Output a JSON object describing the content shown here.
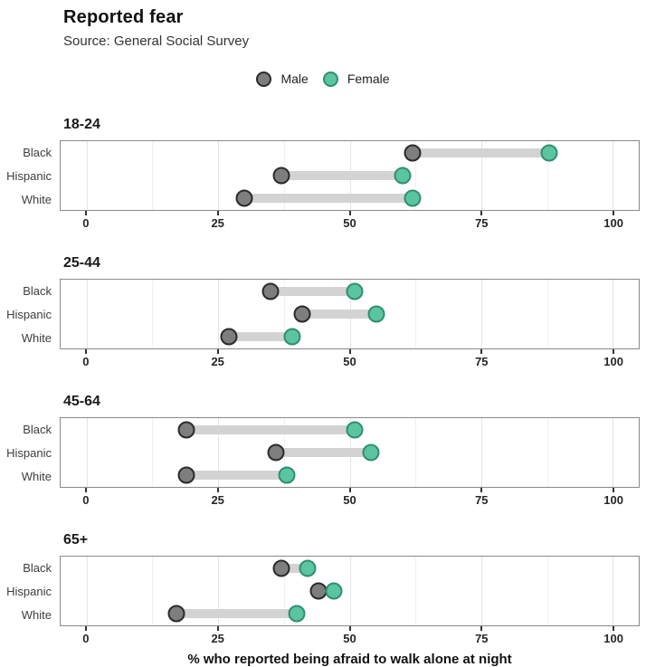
{
  "title": "Reported fear",
  "subtitle": "Source: General Social Survey",
  "colors": {
    "male_fill": "#7e7e7e",
    "male_stroke": "#2b2b2b",
    "female_fill": "#5bc4a1",
    "female_stroke": "#2f8f70",
    "connector": "#d3d3d3",
    "grid_major": "#e4e4e4",
    "grid_minor": "#f0f0f0",
    "panel_border": "#8a8a8a",
    "tick": "#333333"
  },
  "chart_data": {
    "type": "dumbbell",
    "title": "Reported fear",
    "subtitle": "Source: General Social Survey",
    "xlabel": "% who reported being afraid to walk alone at night",
    "xlim": [
      0,
      100
    ],
    "xticks": [
      0,
      25,
      50,
      75,
      100
    ],
    "minor_ticks": [
      12.5,
      37.5,
      62.5,
      87.5
    ],
    "grid": true,
    "legend": [
      "Male",
      "Female"
    ],
    "legend_position": "top-center",
    "series_colors": {
      "Male": "#7e7e7e",
      "Female": "#5bc4a1"
    },
    "categories": [
      "Black",
      "Hispanic",
      "White"
    ],
    "panels": [
      {
        "label": "18-24",
        "rows": [
          {
            "category": "Black",
            "male": 62,
            "female": 88
          },
          {
            "category": "Hispanic",
            "male": 37,
            "female": 60
          },
          {
            "category": "White",
            "male": 30,
            "female": 62
          }
        ]
      },
      {
        "label": "25-44",
        "rows": [
          {
            "category": "Black",
            "male": 35,
            "female": 51
          },
          {
            "category": "Hispanic",
            "male": 41,
            "female": 55
          },
          {
            "category": "White",
            "male": 27,
            "female": 39
          }
        ]
      },
      {
        "label": "45-64",
        "rows": [
          {
            "category": "Black",
            "male": 19,
            "female": 51
          },
          {
            "category": "Hispanic",
            "male": 36,
            "female": 54
          },
          {
            "category": "White",
            "male": 19,
            "female": 38
          }
        ]
      },
      {
        "label": "65+",
        "rows": [
          {
            "category": "Black",
            "male": 37,
            "female": 42
          },
          {
            "category": "Hispanic",
            "male": 44,
            "female": 47
          },
          {
            "category": "White",
            "male": 17,
            "female": 40
          }
        ]
      }
    ]
  }
}
